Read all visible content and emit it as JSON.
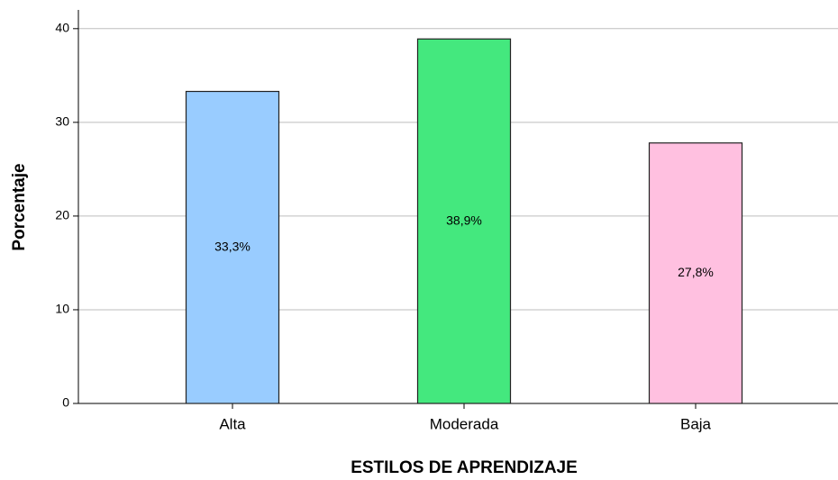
{
  "chart_data": {
    "type": "bar",
    "x_label": "ESTILOS DE APRENDIZAJE",
    "y_label": "Porcentaje",
    "categories": [
      "Alta",
      "Moderada",
      "Baja"
    ],
    "values": [
      33.3,
      38.9,
      27.8
    ],
    "value_labels": [
      "33,3%",
      "38,9%",
      "27,8%"
    ],
    "colors": [
      "#99ccff",
      "#44e87e",
      "#ffc0e0"
    ],
    "ylim": [
      0,
      42
    ],
    "yticks": [
      0,
      10,
      20,
      30,
      40
    ],
    "grid": true
  }
}
